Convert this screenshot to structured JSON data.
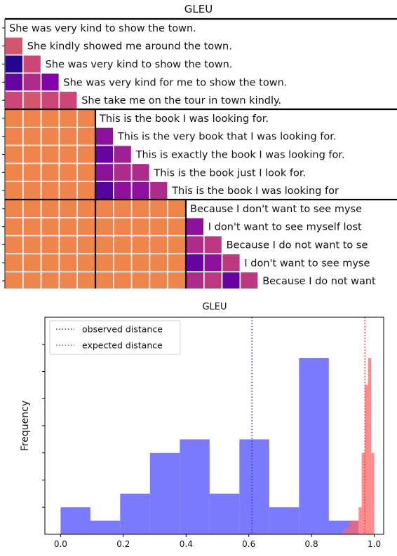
{
  "chart_data": [
    {
      "type": "heatmap",
      "title": "GLEU",
      "groups": [
        {
          "sentences": [
            "She was very kind to show the town.",
            "She kindly showed me around the town.",
            "She was very kind to show the town.",
            "She was very kind for me to show the town.",
            "She take me on the tour in town kindly."
          ],
          "within_values": [
            [],
            [
              0.55
            ],
            [
              0.05,
              0.5
            ],
            [
              0.2,
              0.4,
              0.25
            ],
            [
              0.5,
              0.55,
              0.5,
              0.5
            ]
          ]
        },
        {
          "sentences": [
            "This is the book I was looking for.",
            "This is the very book that I was looking for.",
            "This is exactly the book I was looking for.",
            "This is the book just I look for.",
            "This is the book I was looking for"
          ],
          "within_values": [
            [],
            [
              0.3
            ],
            [
              0.2,
              0.35
            ],
            [
              0.3,
              0.4,
              0.4
            ],
            [
              0.15,
              0.3,
              0.3,
              0.4
            ]
          ]
        },
        {
          "sentences": [
            "Because I don't want to see myse",
            "I don't want to see myself lost",
            "Because I do not want to se",
            "I don't want to see myse",
            "Because I do not want",
            ""
          ],
          "within_values": [
            [],
            [
              0.3
            ],
            [
              0.4,
              0.45
            ],
            [
              0.2,
              0.3,
              0.45
            ],
            [
              0.4,
              0.45,
              0.2,
              0.45
            ],
            [
              0.6,
              0.6,
              0.6,
              0.6,
              0.6
            ]
          ]
        }
      ],
      "between_value": 0.7,
      "colormap": "plasma"
    },
    {
      "type": "histogram",
      "title": "GLEU",
      "xlabel": "",
      "ylabel": "Frequency",
      "xlim": [
        -0.05,
        1.03
      ],
      "ylim": [
        0,
        16
      ],
      "x_ticks": [
        "0.0",
        "0.2",
        "0.4",
        "0.6",
        "0.8",
        "1.0"
      ],
      "x_tick_values": [
        0.0,
        0.2,
        0.4,
        0.6,
        0.8,
        1.0
      ],
      "y_tick_values": [
        2,
        4,
        6,
        8,
        10,
        12,
        14
      ],
      "legend_position": "top-left",
      "series": [
        {
          "name": "observed distance",
          "color": "#4d4dff",
          "bin_edges": [
            0.0,
            0.095,
            0.19,
            0.285,
            0.38,
            0.475,
            0.57,
            0.665,
            0.76,
            0.855,
            0.95
          ],
          "counts": [
            2,
            1,
            3,
            6,
            7,
            3,
            7,
            2,
            13,
            1
          ]
        },
        {
          "name": "expected distance",
          "color": "#ff6666",
          "bin_edges": [
            0.9,
            0.91,
            0.92,
            0.93,
            0.94,
            0.95,
            0.96,
            0.97,
            0.98,
            0.99,
            1.0
          ],
          "counts": [
            0.3,
            0.5,
            1,
            1,
            1,
            2,
            6,
            11,
            13,
            6
          ]
        }
      ],
      "vlines": [
        {
          "name": "observed distance",
          "x": 0.61,
          "color": "#3333ff"
        },
        {
          "name": "expected distance",
          "x": 0.97,
          "color": "#ff3333"
        }
      ],
      "legend": [
        {
          "label": "observed distance",
          "color": "#3333ff"
        },
        {
          "label": "expected distance",
          "color": "#ff3333"
        }
      ]
    }
  ]
}
